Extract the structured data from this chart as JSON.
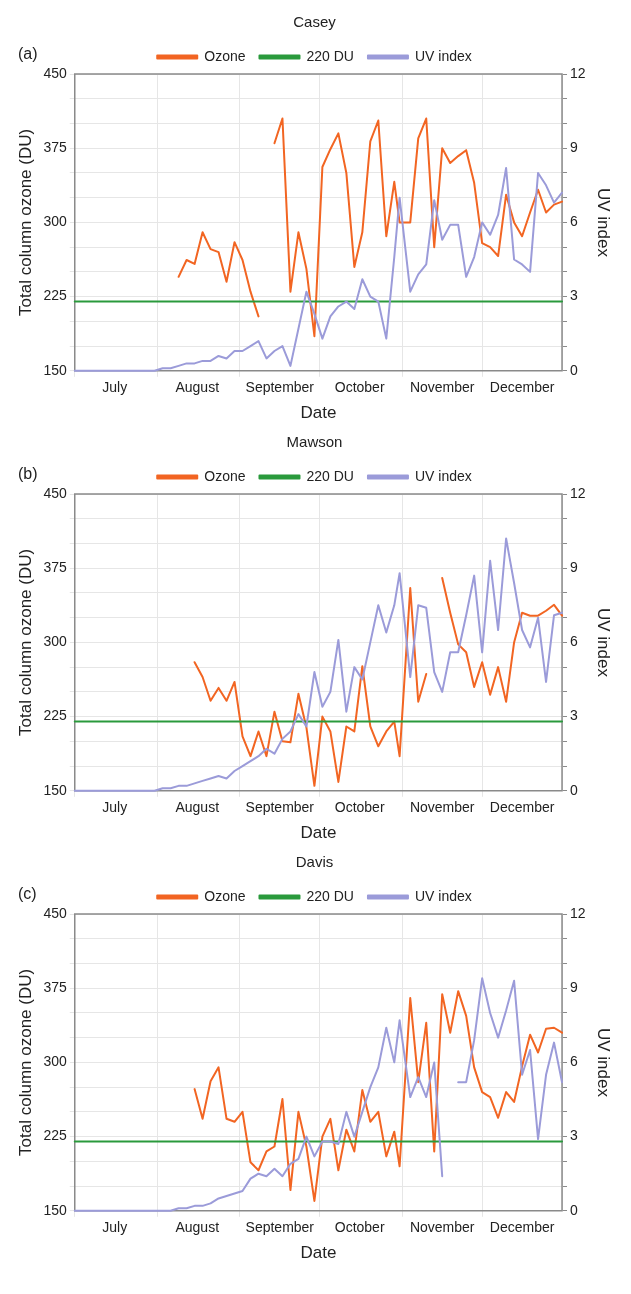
{
  "chart_data": [
    {
      "type": "line",
      "title": "Casey",
      "annotations": [
        "(a)"
      ],
      "xlabel": "Date",
      "ylabel": "Total column ozone (DU)",
      "y2label": "UV index",
      "legend": "top",
      "grid": true,
      "xlim": [
        "--07-01",
        "--12-31"
      ],
      "ylim": [
        150,
        450
      ],
      "y2lim": [
        0,
        12
      ],
      "xticks": [
        {
          "value": "--07-01",
          "label": null
        },
        {
          "value": "--07-16",
          "label": "July"
        },
        {
          "value": "--08-01",
          "label": null
        },
        {
          "value": "--08-16",
          "label": "August"
        },
        {
          "value": "--09-01",
          "label": null
        },
        {
          "value": "--09-16",
          "label": "September"
        },
        {
          "value": "--10-01",
          "label": null
        },
        {
          "value": "--10-16",
          "label": "October"
        },
        {
          "value": "--11-01",
          "label": null
        },
        {
          "value": "--11-16",
          "label": "November"
        },
        {
          "value": "--12-01",
          "label": null
        },
        {
          "value": "--12-16",
          "label": "December"
        }
      ],
      "yticks": [
        150,
        {
          "value": 175,
          "label": null
        },
        {
          "value": 200,
          "label": null
        },
        225,
        {
          "value": 250,
          "label": null
        },
        {
          "value": 275,
          "label": null
        },
        300,
        {
          "value": 325,
          "label": null
        },
        {
          "value": 350,
          "label": null
        },
        375,
        {
          "value": 400,
          "label": null
        },
        {
          "value": 425,
          "label": null
        },
        450
      ],
      "y2ticks": [
        0,
        {
          "value": 1,
          "label": null
        },
        {
          "value": 2,
          "label": null
        },
        3,
        {
          "value": 4,
          "label": null
        },
        {
          "value": 5,
          "label": null
        },
        6,
        {
          "value": 7,
          "label": null
        },
        {
          "value": 8,
          "label": null
        },
        9,
        {
          "value": 10,
          "label": null
        },
        {
          "value": 11,
          "label": null
        },
        12
      ],
      "x": [
        "--07-01",
        "--07-04",
        "--07-07",
        "--07-10",
        "--07-13",
        "--07-16",
        "--07-19",
        "--07-22",
        "--07-25",
        "--07-28",
        "--07-31",
        "--08-03",
        "--08-06",
        "--08-09",
        "--08-12",
        "--08-15",
        "--08-18",
        "--08-21",
        "--08-24",
        "--08-27",
        "--08-30",
        "--09-02",
        "--09-05",
        "--09-08",
        "--09-11",
        "--09-14",
        "--09-17",
        "--09-20",
        "--09-23",
        "--09-26",
        "--09-29",
        "--10-02",
        "--10-05",
        "--10-08",
        "--10-11",
        "--10-14",
        "--10-17",
        "--10-20",
        "--10-23",
        "--10-26",
        "--10-29",
        "--10-31",
        "--11-04",
        "--11-07",
        "--11-10",
        "--11-13",
        "--11-16",
        "--11-19",
        "--11-22",
        "--11-25",
        "--11-28",
        "--12-01",
        "--12-04",
        "--12-07",
        "--12-10",
        "--12-13",
        "--12-16",
        "--12-19",
        "--12-22",
        "--12-25",
        "--12-28",
        "--12-31"
      ],
      "series": [
        {
          "name": "Ozone",
          "color": "#f26522",
          "values": [
            null,
            null,
            null,
            null,
            null,
            null,
            null,
            null,
            null,
            null,
            null,
            null,
            null,
            245,
            262,
            258,
            290,
            273,
            270,
            240,
            280,
            262,
            230,
            205,
            null,
            380,
            405,
            230,
            290,
            253,
            185,
            356,
            374,
            390,
            350,
            255,
            290,
            382,
            403,
            286,
            341,
            300,
            300,
            385,
            405,
            275,
            375,
            360,
            367,
            373,
            340,
            279,
            275,
            266,
            328,
            300,
            286,
            310,
            333,
            310,
            318,
            321
          ]
        },
        {
          "name": "220 DU",
          "color": "#2a9a3c",
          "x": [
            "--07-01",
            "--12-31"
          ],
          "values": [
            220,
            220
          ]
        },
        {
          "name": "UV index",
          "color": "#9b9bd9",
          "axis": "y2",
          "values": [
            0,
            0,
            0,
            0,
            0,
            0,
            0,
            0,
            0,
            0,
            0,
            0.1,
            0.1,
            0.2,
            0.3,
            0.3,
            0.4,
            0.4,
            0.6,
            0.5,
            0.8,
            0.8,
            1.0,
            1.2,
            0.5,
            0.8,
            1.0,
            0.2,
            1.7,
            3.2,
            2.3,
            1.3,
            2.2,
            2.6,
            2.8,
            2.5,
            3.7,
            3.0,
            2.8,
            1.3,
            4.6,
            7.0,
            3.2,
            3.9,
            4.3,
            6.9,
            5.3,
            5.9,
            5.9,
            3.8,
            4.6,
            6.0,
            5.5,
            6.3,
            8.2,
            4.5,
            4.3,
            4.0,
            8.0,
            7.5,
            6.8,
            7.2
          ]
        }
      ]
    },
    {
      "type": "line",
      "title": "Mawson",
      "annotations": [
        "(b)"
      ],
      "xlabel": "Date",
      "ylabel": "Total column ozone (DU)",
      "y2label": "UV index",
      "legend": "top",
      "grid": true,
      "xlim": [
        "--07-01",
        "--12-31"
      ],
      "ylim": [
        150,
        450
      ],
      "y2lim": [
        0,
        12
      ],
      "xticks": [
        {
          "value": "--07-01",
          "label": null
        },
        {
          "value": "--07-16",
          "label": "July"
        },
        {
          "value": "--08-01",
          "label": null
        },
        {
          "value": "--08-16",
          "label": "August"
        },
        {
          "value": "--09-01",
          "label": null
        },
        {
          "value": "--09-16",
          "label": "September"
        },
        {
          "value": "--10-01",
          "label": null
        },
        {
          "value": "--10-16",
          "label": "October"
        },
        {
          "value": "--11-01",
          "label": null
        },
        {
          "value": "--11-16",
          "label": "November"
        },
        {
          "value": "--12-01",
          "label": null
        },
        {
          "value": "--12-16",
          "label": "December"
        }
      ],
      "yticks": [
        150,
        {
          "value": 175,
          "label": null
        },
        {
          "value": 200,
          "label": null
        },
        225,
        {
          "value": 250,
          "label": null
        },
        {
          "value": 275,
          "label": null
        },
        300,
        {
          "value": 325,
          "label": null
        },
        {
          "value": 350,
          "label": null
        },
        375,
        {
          "value": 400,
          "label": null
        },
        {
          "value": 425,
          "label": null
        },
        450
      ],
      "y2ticks": [
        0,
        {
          "value": 1,
          "label": null
        },
        {
          "value": 2,
          "label": null
        },
        3,
        {
          "value": 4,
          "label": null
        },
        {
          "value": 5,
          "label": null
        },
        6,
        {
          "value": 7,
          "label": null
        },
        {
          "value": 8,
          "label": null
        },
        9,
        {
          "value": 10,
          "label": null
        },
        {
          "value": 11,
          "label": null
        },
        12
      ],
      "x": [
        "--07-01",
        "--07-04",
        "--07-07",
        "--07-10",
        "--07-13",
        "--07-16",
        "--07-19",
        "--07-22",
        "--07-25",
        "--07-28",
        "--07-31",
        "--08-03",
        "--08-06",
        "--08-09",
        "--08-12",
        "--08-15",
        "--08-18",
        "--08-21",
        "--08-24",
        "--08-27",
        "--08-30",
        "--09-02",
        "--09-05",
        "--09-08",
        "--09-11",
        "--09-14",
        "--09-17",
        "--09-20",
        "--09-23",
        "--09-26",
        "--09-29",
        "--10-02",
        "--10-05",
        "--10-08",
        "--10-11",
        "--10-14",
        "--10-17",
        "--10-20",
        "--10-23",
        "--10-26",
        "--10-29",
        "--10-31",
        "--11-04",
        "--11-07",
        "--11-10",
        "--11-13",
        "--11-16",
        "--11-19",
        "--11-22",
        "--11-25",
        "--11-28",
        "--12-01",
        "--12-04",
        "--12-07",
        "--12-10",
        "--12-13",
        "--12-16",
        "--12-19",
        "--12-22",
        "--12-25",
        "--12-28",
        "--12-31"
      ],
      "series": [
        {
          "name": "Ozone",
          "color": "#f26522",
          "values": [
            null,
            null,
            null,
            null,
            null,
            null,
            null,
            null,
            null,
            null,
            null,
            null,
            null,
            null,
            null,
            280,
            265,
            241,
            254,
            241,
            260,
            205,
            185,
            210,
            185,
            230,
            200,
            199,
            248,
            214,
            155,
            225,
            210,
            159,
            215,
            210,
            276,
            215,
            195,
            210,
            220,
            185,
            355,
            240,
            268,
            null,
            365,
            330,
            298,
            290,
            255,
            280,
            247,
            275,
            240,
            300,
            330,
            327,
            327,
            332,
            338,
            327
          ]
        },
        {
          "name": "220 DU",
          "color": "#2a9a3c",
          "x": [
            "--07-01",
            "--12-31"
          ],
          "values": [
            220,
            220
          ]
        },
        {
          "name": "UV index",
          "color": "#9b9bd9",
          "axis": "y2",
          "values": [
            0,
            0,
            0,
            0,
            0,
            0,
            0,
            0,
            0,
            0,
            0,
            0.1,
            0.1,
            0.2,
            0.2,
            0.3,
            0.4,
            0.5,
            0.6,
            0.5,
            0.8,
            1.0,
            1.2,
            1.4,
            1.7,
            1.5,
            2.1,
            2.4,
            3.1,
            2.6,
            4.8,
            3.4,
            4.0,
            6.1,
            3.2,
            5.0,
            4.5,
            6.0,
            7.5,
            6.4,
            7.5,
            8.8,
            4.6,
            7.5,
            7.4,
            4.8,
            4.0,
            5.6,
            5.6,
            7.1,
            8.7,
            5.6,
            9.3,
            6.5,
            10.2,
            8.4,
            6.5,
            5.8,
            7.0,
            4.4,
            7.1,
            7.2
          ]
        }
      ]
    },
    {
      "type": "line",
      "title": "Davis",
      "annotations": [
        "(c)"
      ],
      "xlabel": "Date",
      "ylabel": "Total column ozone (DU)",
      "y2label": "UV index",
      "legend": "top",
      "grid": true,
      "xlim": [
        "--07-01",
        "--12-31"
      ],
      "ylim": [
        150,
        450
      ],
      "y2lim": [
        0,
        12
      ],
      "xticks": [
        {
          "value": "--07-01",
          "label": null
        },
        {
          "value": "--07-16",
          "label": "July"
        },
        {
          "value": "--08-01",
          "label": null
        },
        {
          "value": "--08-16",
          "label": "August"
        },
        {
          "value": "--09-01",
          "label": null
        },
        {
          "value": "--09-16",
          "label": "September"
        },
        {
          "value": "--10-01",
          "label": null
        },
        {
          "value": "--10-16",
          "label": "October"
        },
        {
          "value": "--11-01",
          "label": null
        },
        {
          "value": "--11-16",
          "label": "November"
        },
        {
          "value": "--12-01",
          "label": null
        },
        {
          "value": "--12-16",
          "label": "December"
        }
      ],
      "yticks": [
        150,
        {
          "value": 175,
          "label": null
        },
        {
          "value": 200,
          "label": null
        },
        225,
        {
          "value": 250,
          "label": null
        },
        {
          "value": 275,
          "label": null
        },
        300,
        {
          "value": 325,
          "label": null
        },
        {
          "value": 350,
          "label": null
        },
        375,
        {
          "value": 400,
          "label": null
        },
        {
          "value": 425,
          "label": null
        },
        450
      ],
      "y2ticks": [
        0,
        {
          "value": 1,
          "label": null
        },
        {
          "value": 2,
          "label": null
        },
        3,
        {
          "value": 4,
          "label": null
        },
        {
          "value": 5,
          "label": null
        },
        6,
        {
          "value": 7,
          "label": null
        },
        {
          "value": 8,
          "label": null
        },
        9,
        {
          "value": 10,
          "label": null
        },
        {
          "value": 11,
          "label": null
        },
        12
      ],
      "x": [
        "--07-01",
        "--07-04",
        "--07-07",
        "--07-10",
        "--07-13",
        "--07-16",
        "--07-19",
        "--07-22",
        "--07-25",
        "--07-28",
        "--07-31",
        "--08-03",
        "--08-06",
        "--08-09",
        "--08-12",
        "--08-15",
        "--08-18",
        "--08-21",
        "--08-24",
        "--08-27",
        "--08-30",
        "--09-02",
        "--09-05",
        "--09-08",
        "--09-11",
        "--09-14",
        "--09-17",
        "--09-20",
        "--09-23",
        "--09-26",
        "--09-29",
        "--10-02",
        "--10-05",
        "--10-08",
        "--10-11",
        "--10-14",
        "--10-17",
        "--10-20",
        "--10-23",
        "--10-26",
        "--10-29",
        "--10-31",
        "--11-04",
        "--11-07",
        "--11-10",
        "--11-13",
        "--11-16",
        "--11-19",
        "--11-22",
        "--11-25",
        "--11-28",
        "--12-01",
        "--12-04",
        "--12-07",
        "--12-10",
        "--12-13",
        "--12-16",
        "--12-19",
        "--12-22",
        "--12-25",
        "--12-28",
        "--12-31"
      ],
      "series": [
        {
          "name": "Ozone",
          "color": "#f26522",
          "values": [
            null,
            null,
            null,
            null,
            null,
            null,
            null,
            null,
            null,
            null,
            null,
            null,
            null,
            null,
            null,
            273,
            243,
            281,
            295,
            243,
            240,
            250,
            199,
            191,
            210,
            215,
            263,
            171,
            250,
            215,
            160,
            225,
            243,
            191,
            232,
            210,
            272,
            240,
            250,
            205,
            230,
            195,
            365,
            280,
            340,
            210,
            369,
            330,
            372,
            347,
            295,
            270,
            265,
            244,
            270,
            260,
            296,
            328,
            310,
            334,
            335,
            330
          ]
        },
        {
          "name": "220 DU",
          "color": "#2a9a3c",
          "x": [
            "--07-01",
            "--12-31"
          ],
          "values": [
            220,
            220
          ]
        },
        {
          "name": "UV index",
          "color": "#9b9bd9",
          "axis": "y2",
          "values": [
            0,
            0,
            0,
            0,
            0,
            0,
            0,
            0,
            0,
            0,
            0,
            0,
            0,
            0.1,
            0.1,
            0.2,
            0.2,
            0.3,
            0.5,
            0.6,
            0.7,
            0.8,
            1.3,
            1.5,
            1.4,
            1.7,
            1.4,
            1.9,
            2.1,
            3.0,
            2.2,
            2.8,
            2.8,
            2.7,
            4.0,
            3.0,
            4.0,
            5.0,
            5.8,
            7.4,
            6.0,
            7.7,
            4.6,
            5.4,
            4.6,
            6.0,
            1.4,
            null,
            5.2,
            5.2,
            6.9,
            9.4,
            8.0,
            7.0,
            8.1,
            9.3,
            5.5,
            6.5,
            2.9,
            5.5,
            6.8,
            5.2
          ]
        }
      ]
    }
  ]
}
